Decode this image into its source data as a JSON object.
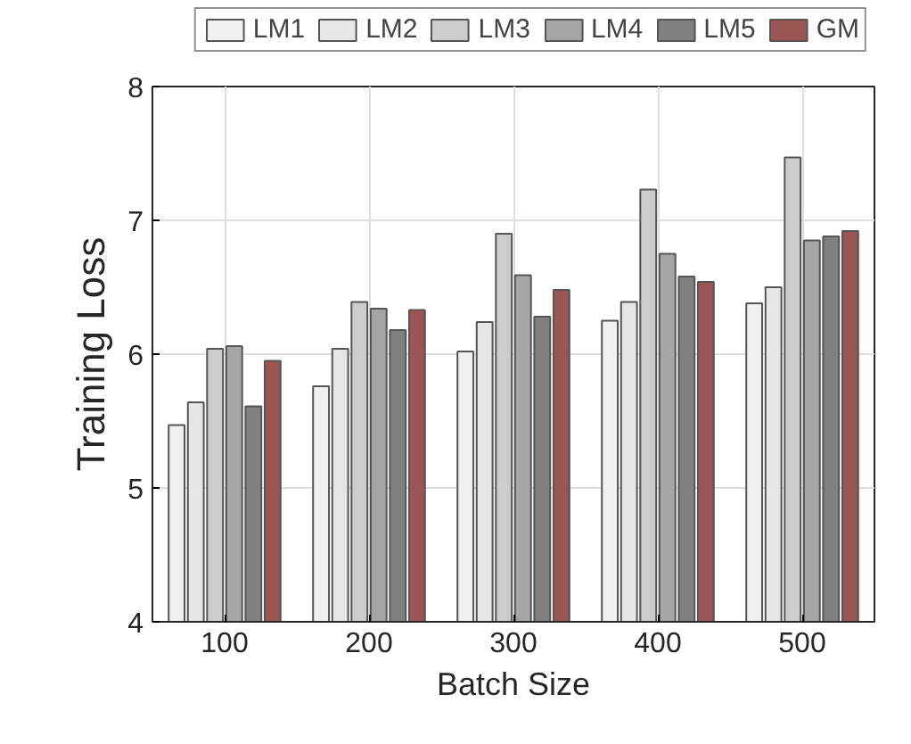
{
  "chart_data": {
    "type": "bar",
    "xlabel": "Batch Size",
    "ylabel": "Training Loss",
    "categories": [
      "100",
      "200",
      "300",
      "400",
      "500"
    ],
    "series": [
      {
        "name": "LM1",
        "color": "#f0f0f0",
        "values": [
          5.47,
          5.76,
          6.02,
          6.25,
          6.38
        ]
      },
      {
        "name": "LM2",
        "color": "#e6e6e6",
        "values": [
          5.64,
          6.04,
          6.24,
          6.39,
          6.5
        ]
      },
      {
        "name": "LM3",
        "color": "#cccccc",
        "values": [
          6.04,
          6.39,
          6.9,
          7.23,
          7.47
        ]
      },
      {
        "name": "LM4",
        "color": "#a6a6a6",
        "values": [
          6.06,
          6.34,
          6.59,
          6.75,
          6.85
        ]
      },
      {
        "name": "LM5",
        "color": "#808080",
        "values": [
          5.61,
          6.18,
          6.28,
          6.58,
          6.88
        ]
      },
      {
        "name": "GM",
        "color": "#9c5555",
        "values": [
          5.95,
          6.33,
          6.48,
          6.54,
          6.92
        ]
      }
    ],
    "ylim": [
      4,
      8
    ],
    "yticks": [
      4,
      5,
      6,
      7,
      8
    ],
    "grid": true,
    "legend": "top"
  }
}
